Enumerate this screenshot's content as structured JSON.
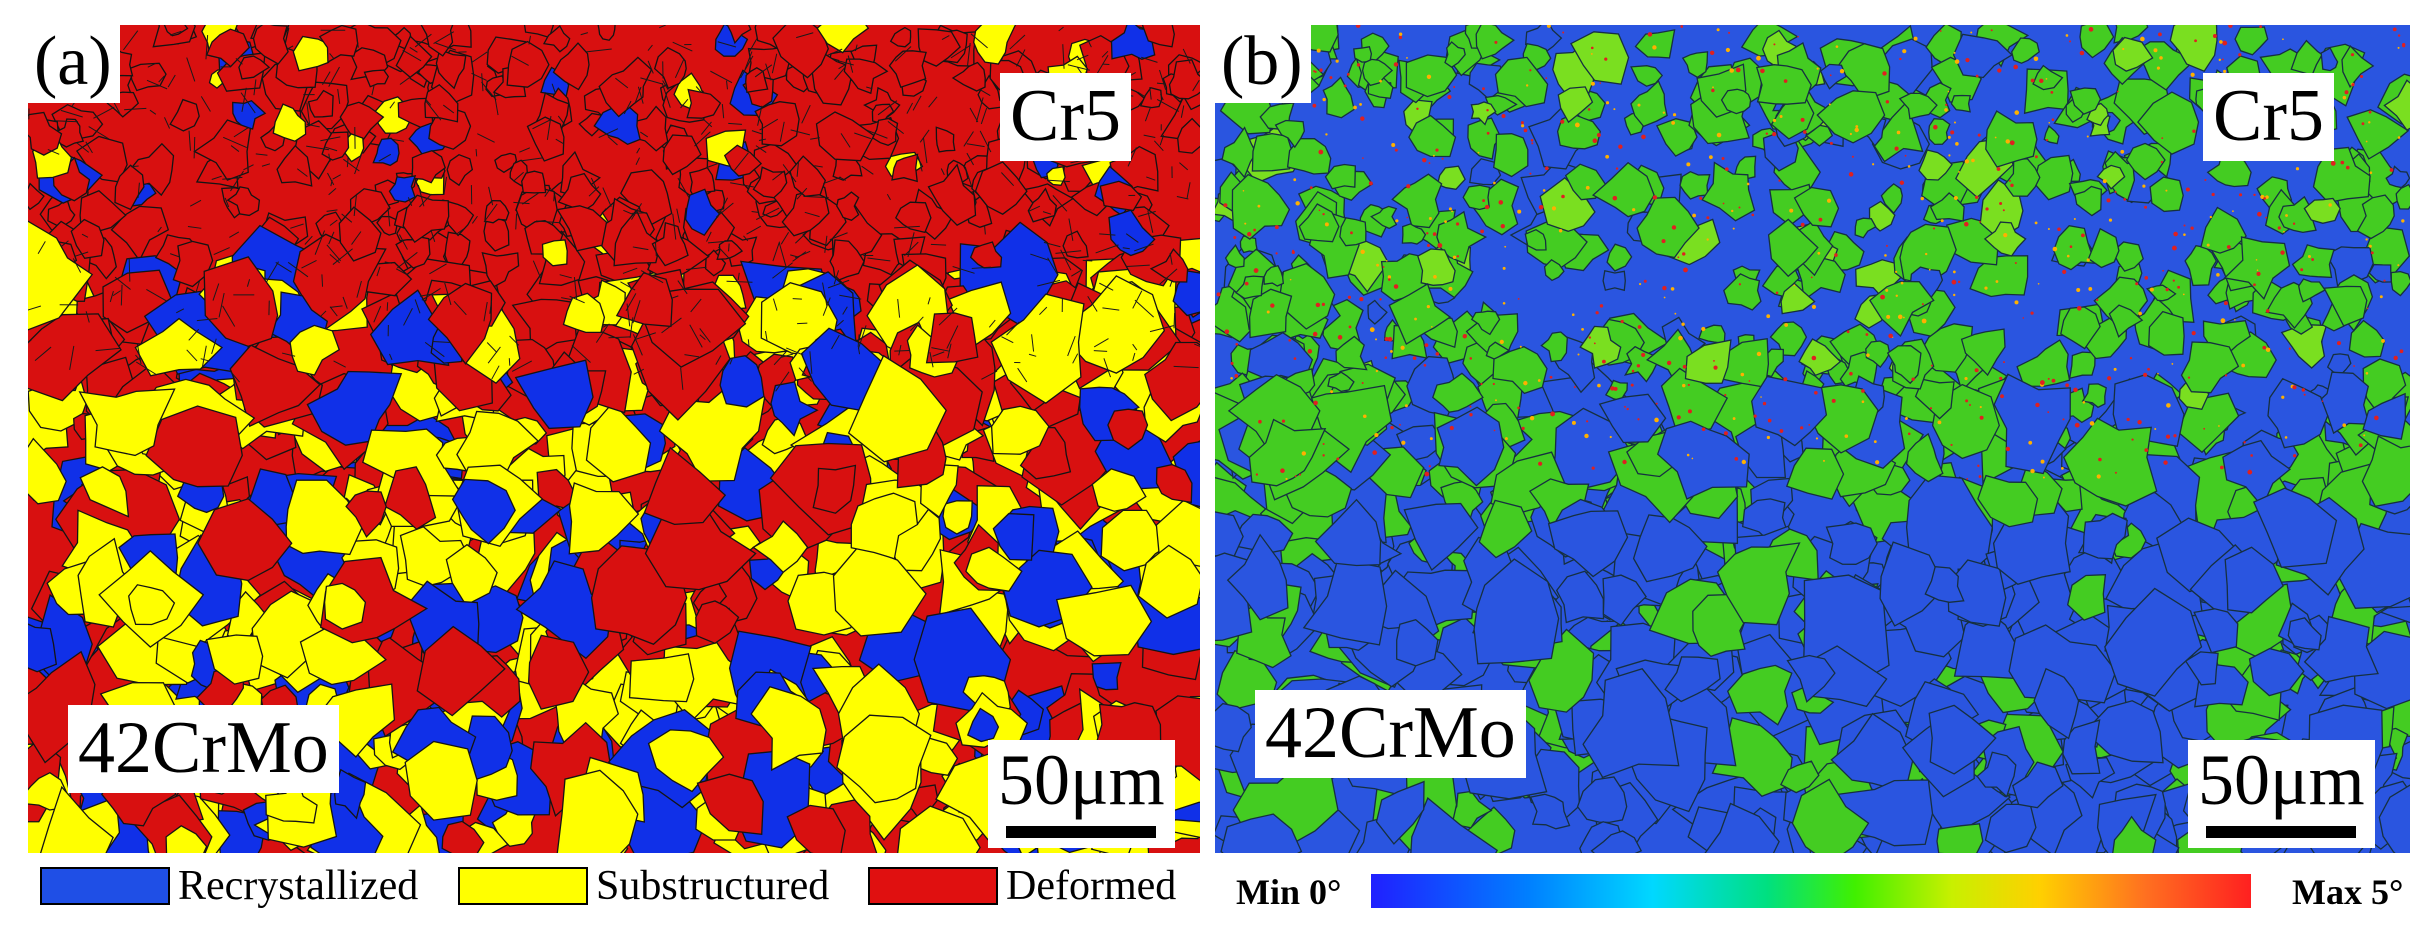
{
  "figure": {
    "panel_a": {
      "letter": "(a)",
      "top_material": "Cr5",
      "bottom_material": "42CrMo",
      "scale_label": "50μm",
      "colors": {
        "recrystallized": "#1030e8",
        "substructured": "#ffff00",
        "deformed": "#d81010"
      }
    },
    "panel_b": {
      "letter": "(b)",
      "top_material": "Cr5",
      "bottom_material": "42CrMo",
      "scale_label": "50μm",
      "colors": {
        "low": "#2a55e0",
        "mid": "#44cc22",
        "high": "#e02020"
      }
    },
    "legend": [
      {
        "label": "Recrystallized",
        "color": "#1f4fe6"
      },
      {
        "label": "Substructured",
        "color": "#ffff00"
      },
      {
        "label": "Deformed",
        "color": "#e01010"
      }
    ],
    "colorbar": {
      "min_label": "Min 0°",
      "max_label": "Max 5°"
    }
  }
}
